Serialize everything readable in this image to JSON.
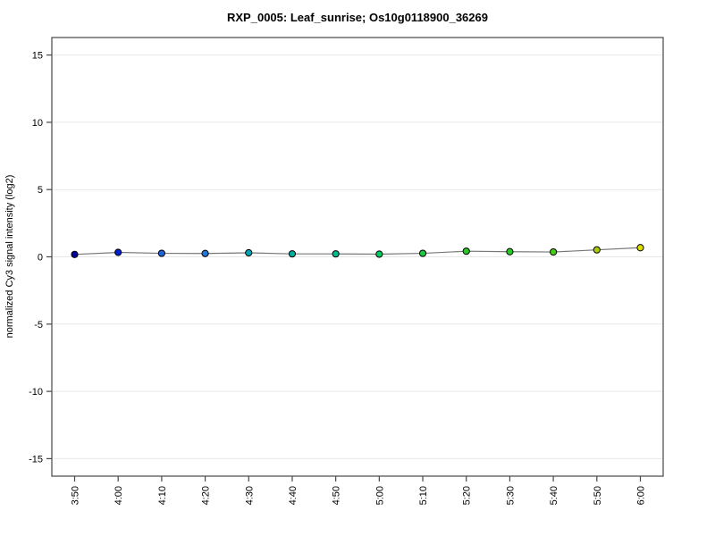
{
  "title": "RXP_0005: Leaf_sunrise; Os10g0118900_36269",
  "chart_data": {
    "type": "line",
    "title": "RXP_0005: Leaf_sunrise; Os10g0118900_36269",
    "categories": [
      "3:50",
      "4:00",
      "4:10",
      "4:20",
      "4:30",
      "4:40",
      "4:50",
      "5:00",
      "5:10",
      "5:20",
      "5:30",
      "5:40",
      "5:50",
      "6:00"
    ],
    "values": [
      0.18,
      0.33,
      0.26,
      0.25,
      0.3,
      0.22,
      0.22,
      0.2,
      0.26,
      0.42,
      0.38,
      0.36,
      0.52,
      0.68
    ],
    "point_colors": [
      "#0000A0",
      "#0020D0",
      "#1E64D8",
      "#2277D8",
      "#00A4B4",
      "#00AEA0",
      "#00BE8C",
      "#00C865",
      "#1EC83C",
      "#28CC28",
      "#28CC28",
      "#46CC14",
      "#AACC00",
      "#DCDC00"
    ],
    "xlabel": "",
    "ylabel": "normalized Cy3 signal intensity (log2)",
    "ylim": [
      -15,
      15
    ],
    "yticks": [
      15,
      10,
      5,
      0,
      -5,
      -10,
      -15
    ],
    "grid": "horizontal",
    "legend": "none",
    "line_color": "#787878",
    "frame_color": "#474747",
    "tick_color": "#474747",
    "grid_color": "#e7e7e7",
    "background": "#ffffff"
  }
}
